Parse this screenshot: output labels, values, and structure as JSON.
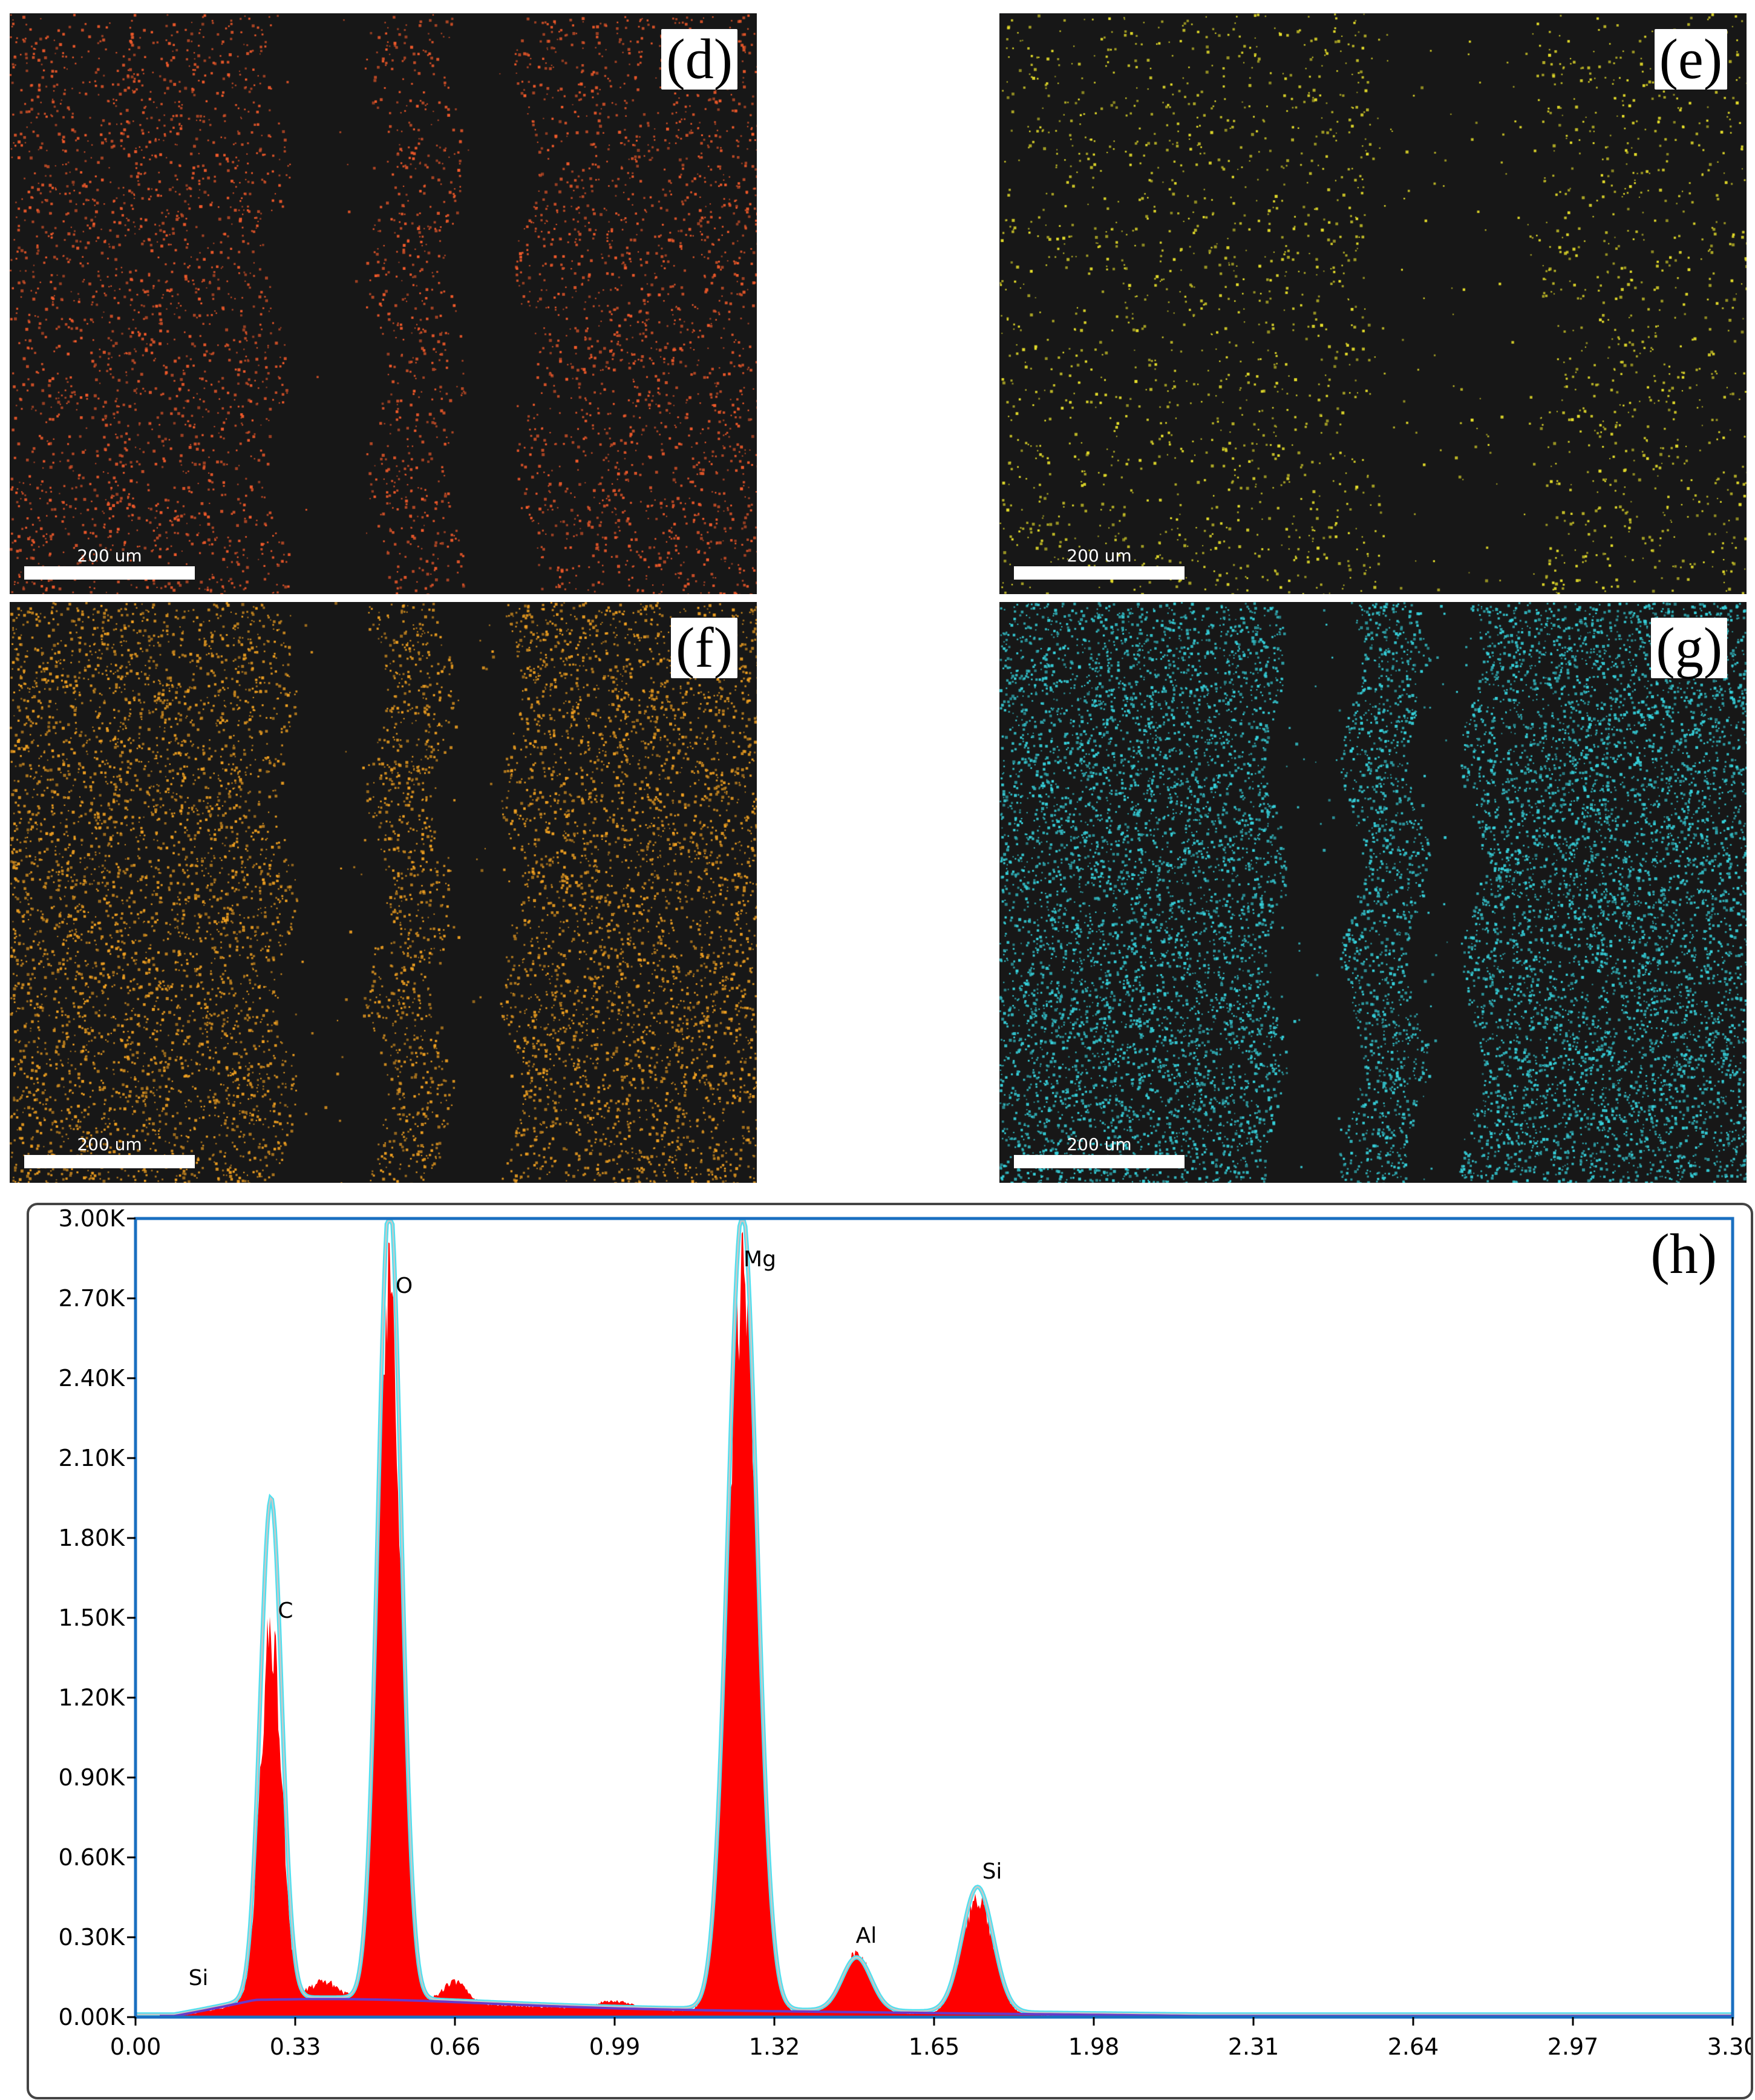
{
  "maps": [
    {
      "label": "(d)",
      "scale": "200 um",
      "color": "#f25a2a",
      "density": 0.0048,
      "profile": "d"
    },
    {
      "label": "(e)",
      "scale": "200 um",
      "color": "#e8e02a",
      "density": 0.0024,
      "profile": "e"
    },
    {
      "label": "(f)",
      "scale": "200 um",
      "color": "#f0a020",
      "density": 0.0085,
      "profile": "f"
    },
    {
      "label": "(g)",
      "scale": "200 um",
      "color": "#36d2dc",
      "density": 0.012,
      "profile": "g"
    }
  ],
  "chart_data": {
    "type": "area",
    "panel_label": "(h)",
    "xlim": [
      0,
      3.3
    ],
    "ylim": [
      0,
      3000
    ],
    "x_ticks": [
      "0.00",
      "0.33",
      "0.66",
      "0.99",
      "1.32",
      "1.65",
      "1.98",
      "2.31",
      "2.64",
      "2.97",
      "3.30"
    ],
    "y_ticks": [
      "0.00K",
      "0.30K",
      "0.60K",
      "0.90K",
      "1.20K",
      "1.50K",
      "1.80K",
      "2.10K",
      "2.40K",
      "2.70K",
      "3.00K"
    ],
    "peaks": [
      {
        "element": "Si",
        "x": 0.12,
        "y": 20,
        "label_x": 0.13,
        "label_y": 120
      },
      {
        "element": "C",
        "x": 0.28,
        "y": 1380,
        "fit_y": 1880,
        "label_x": 0.31,
        "label_y": 1500
      },
      {
        "element": "O",
        "x": 0.525,
        "y": 2640,
        "fit_y": 3000,
        "label_x": 0.555,
        "label_y": 2720
      },
      {
        "element": "Mg",
        "x": 1.254,
        "y": 2730,
        "fit_y": 3000,
        "label_x": 1.29,
        "label_y": 2820
      },
      {
        "element": "Al",
        "x": 1.49,
        "y": 220,
        "fit_y": 200,
        "label_x": 1.51,
        "label_y": 280
      },
      {
        "element": "Si",
        "x": 1.74,
        "y": 440,
        "fit_y": 470,
        "label_x": 1.77,
        "label_y": 520
      }
    ],
    "colors": {
      "spectrum": "#ff0000",
      "fit": "#4fe0f0",
      "fit_inner": "#c8c8c8",
      "background": "#6a38c8",
      "axis_frame": "#1a6fc0"
    }
  }
}
